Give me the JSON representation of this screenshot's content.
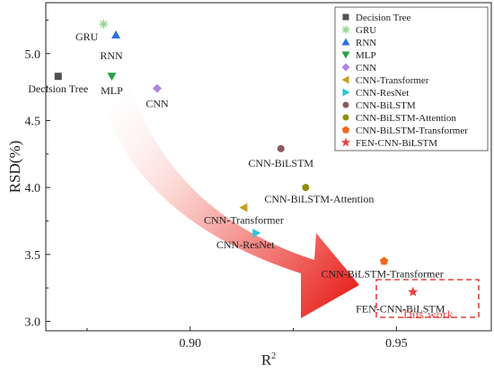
{
  "chart_data": {
    "type": "scatter",
    "xlabel": "R",
    "xlabel_sup": "2",
    "ylabel": "RSD(%)",
    "xlim": [
      0.865,
      0.973
    ],
    "ylim": [
      2.93,
      5.38
    ],
    "xticks": [
      0.9,
      0.95
    ],
    "xtick_labels": [
      "0.90",
      "0.95"
    ],
    "yticks": [
      3.0,
      3.5,
      4.0,
      4.5,
      5.0
    ],
    "ytick_labels": [
      "3.0",
      "3.5",
      "4.0",
      "4.5",
      "5.0"
    ],
    "grid": false,
    "legend_position": "top-right",
    "points": [
      {
        "name": "Decision Tree",
        "x": 0.868,
        "y": 4.83,
        "marker": "square",
        "color": "#505050",
        "label": "Decision Tree"
      },
      {
        "name": "GRU",
        "x": 0.879,
        "y": 5.22,
        "marker": "asterisk",
        "color": "#8fd48f",
        "label": "GRU"
      },
      {
        "name": "RNN",
        "x": 0.882,
        "y": 5.14,
        "marker": "triangle-up",
        "color": "#2b6fe0",
        "label": "RNN"
      },
      {
        "name": "MLP",
        "x": 0.881,
        "y": 4.83,
        "marker": "triangle-down",
        "color": "#2e9e4c",
        "label": "MLP"
      },
      {
        "name": "CNN",
        "x": 0.892,
        "y": 4.74,
        "marker": "diamond",
        "color": "#b084e0",
        "label": "CNN"
      },
      {
        "name": "CNN-Transformer",
        "x": 0.913,
        "y": 3.85,
        "marker": "triangle-left",
        "color": "#c8a01c",
        "label": "CNN-Transformer"
      },
      {
        "name": "CNN-ResNet",
        "x": 0.916,
        "y": 3.66,
        "marker": "triangle-right",
        "color": "#28c6e0",
        "label": "CNN-ResNet"
      },
      {
        "name": "CNN-BiLSTM",
        "x": 0.922,
        "y": 4.29,
        "marker": "circle",
        "color": "#8a5a5a",
        "label": "CNN-BiLSTM"
      },
      {
        "name": "CNN-BiLSTM-Attention",
        "x": 0.928,
        "y": 4.0,
        "marker": "circle",
        "color": "#8e8e10",
        "label": "CNN-BiLSTM-Attention"
      },
      {
        "name": "CNN-BiLSTM-Transformer",
        "x": 0.947,
        "y": 3.45,
        "marker": "pentagon",
        "color": "#f06a20",
        "label": "CNN-BiLSTM-Transformer"
      },
      {
        "name": "FEN-CNN-BiLSTM",
        "x": 0.954,
        "y": 3.22,
        "marker": "star",
        "color": "#e8413e",
        "label": "FEN-CNN-BiLSTM"
      }
    ],
    "annotation": "This work",
    "colors": {
      "arrow_tail": "#fdf0ee",
      "arrow_head": "#e8201c",
      "highlight_box": "#e8413e"
    }
  }
}
